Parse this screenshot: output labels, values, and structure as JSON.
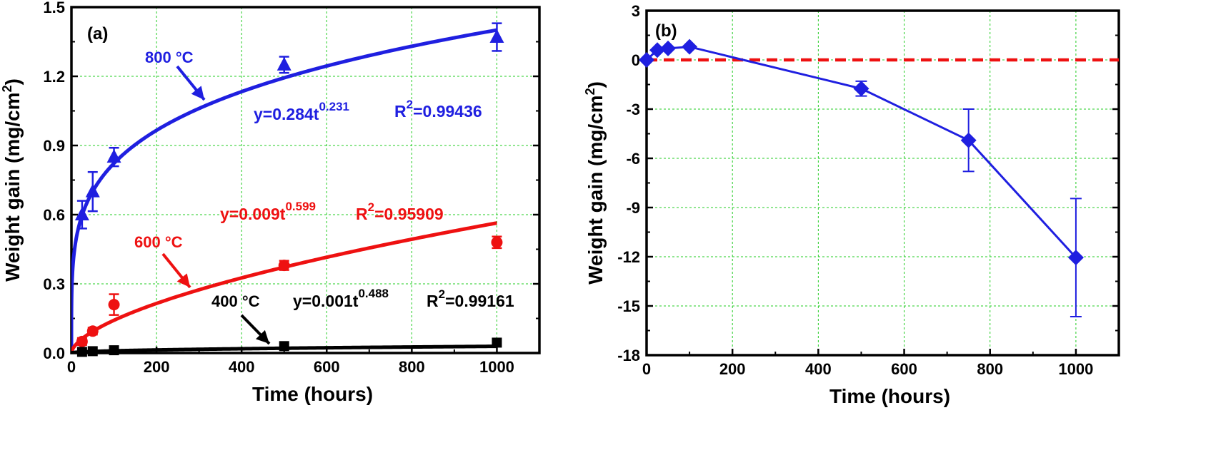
{
  "chart_data": [
    {
      "type": "scatter",
      "panel_label": "(a)",
      "xlabel": "Time (hours)",
      "ylabel": "Weight gain (mg/cm",
      "ylabel_sup": "2",
      "ylabel_end": ")",
      "xlim": [
        0,
        1100
      ],
      "ylim": [
        0,
        1.5
      ],
      "xticks": [
        0,
        200,
        400,
        600,
        800,
        1000
      ],
      "xtick_labels": [
        "0",
        "200",
        "400",
        "600",
        "800",
        "1000"
      ],
      "yticks": [
        0,
        0.3,
        0.6,
        0.9,
        1.2,
        1.5
      ],
      "ytick_labels": [
        "0.0",
        "0.3",
        "0.6",
        "0.9",
        "1.2",
        "1.5"
      ],
      "grid": true,
      "series": [
        {
          "name": "800 °C",
          "label_main": "800 °C",
          "color": "#1f1fe0",
          "marker": "triangle",
          "x": [
            25,
            50,
            100,
            500,
            1000
          ],
          "y": [
            0.6,
            0.7,
            0.85,
            1.25,
            1.37
          ],
          "error": [
            0.06,
            0.085,
            0.04,
            0.035,
            0.06
          ],
          "fit": {
            "a": 0.284,
            "b": 0.231
          },
          "equation_prefix": "y=0.284t",
          "equation_exponent": "0.231",
          "r2_prefix": "R",
          "r2_sup": "2",
          "r2_value": "=0.99436"
        },
        {
          "name": "600 °C",
          "label_main": "600 °C",
          "color": "#ee1111",
          "marker": "circle",
          "x": [
            25,
            50,
            100,
            500,
            1000
          ],
          "y": [
            0.05,
            0.095,
            0.21,
            0.38,
            0.48
          ],
          "error": [
            0.015,
            0.015,
            0.045,
            0.02,
            0.025
          ],
          "fit": {
            "a": 0.009,
            "b": 0.599
          },
          "equation_prefix": "y=0.009t",
          "equation_exponent": "0.599",
          "r2_prefix": "R",
          "r2_sup": "2",
          "r2_value": "=0.95909"
        },
        {
          "name": "400 °C",
          "label_main": "400 °C",
          "color": "#000000",
          "marker": "square",
          "x": [
            25,
            50,
            100,
            500,
            1000
          ],
          "y": [
            0.005,
            0.008,
            0.012,
            0.03,
            0.045
          ],
          "error": [
            0,
            0,
            0,
            0,
            0
          ],
          "fit": {
            "a": 0.001,
            "b": 0.488
          },
          "equation_prefix": "y=0.001t",
          "equation_exponent": "0.488",
          "r2_prefix": "R",
          "r2_sup": "2",
          "r2_value": "=0.99161"
        }
      ]
    },
    {
      "type": "line",
      "panel_label": "(b)",
      "xlabel": "Time (hours)",
      "ylabel": "Weight gain (mg/cm",
      "ylabel_sup": "2",
      "ylabel_end": ")",
      "xlim": [
        0,
        1100
      ],
      "ylim": [
        -18,
        3
      ],
      "xticks": [
        0,
        200,
        400,
        600,
        800,
        1000
      ],
      "xtick_labels": [
        "0",
        "200",
        "400",
        "600",
        "800",
        "1000"
      ],
      "yticks": [
        -18,
        -15,
        -12,
        -9,
        -6,
        -3,
        0,
        3
      ],
      "ytick_labels": [
        "-18",
        "-15",
        "-12",
        "-9",
        "-6",
        "-3",
        "0",
        "3"
      ],
      "grid": true,
      "reference_line": {
        "y": 0,
        "color": "#ee1111",
        "style": "dashed"
      },
      "series": [
        {
          "color": "#1f1fe0",
          "marker": "diamond",
          "x": [
            0,
            25,
            50,
            100,
            500,
            750,
            1000
          ],
          "y": [
            0,
            0.6,
            0.7,
            0.8,
            -1.75,
            -4.9,
            -12.05
          ],
          "error": [
            0,
            0,
            0,
            0,
            0.45,
            1.9,
            3.6
          ]
        }
      ]
    }
  ]
}
